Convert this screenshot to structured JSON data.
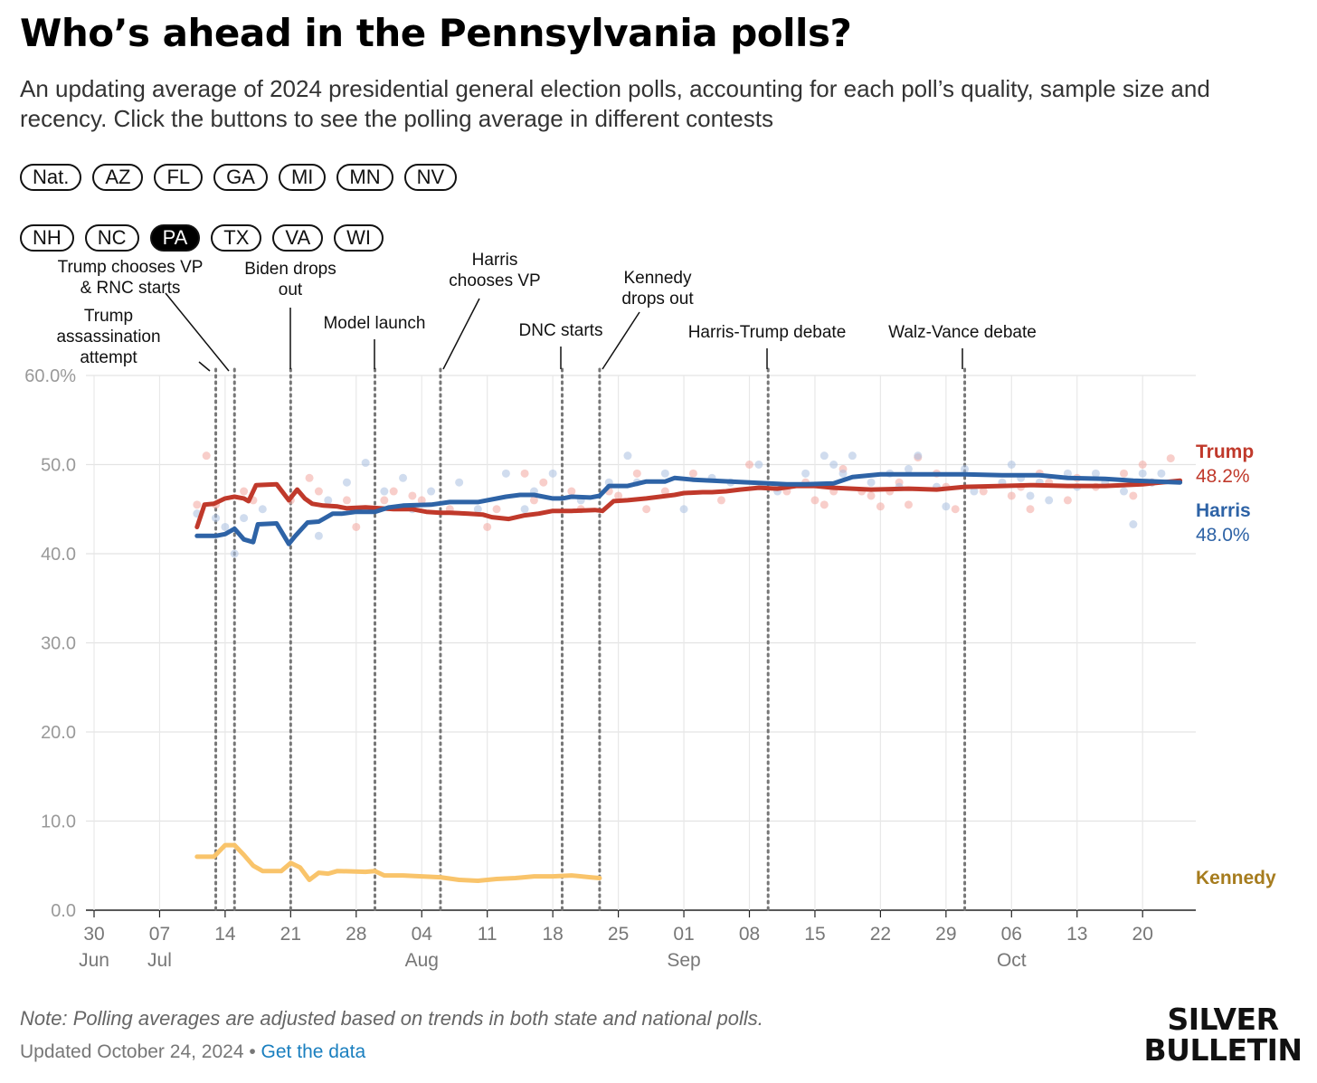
{
  "header": {
    "title": "Who’s ahead in the Pennsylvania polls?",
    "subtitle": "An updating average of 2024 presidential general election polls, accounting for each poll’s quality, sample size and recency. Click the buttons to see the polling average in different contests"
  },
  "buttons": {
    "row1": [
      "Nat.",
      "AZ",
      "FL",
      "GA",
      "MI",
      "MN",
      "NV"
    ],
    "row2": [
      "NH",
      "NC",
      "PA",
      "TX",
      "VA",
      "WI"
    ],
    "active": "PA"
  },
  "footer": {
    "note": "Note: Polling averages are adjusted based on trends in both state and national polls.",
    "updated": "Updated October 24, 2024 •",
    "link": "Get the data",
    "logo_line1": "SILVER",
    "logo_line2": "BULLETIN"
  },
  "colors": {
    "trump": "#c0392b",
    "harris": "#2e63a6",
    "kennedy": "#f9c46b",
    "kennedy_label": "#a67c1e"
  },
  "chart_data": {
    "type": "line",
    "title": "Who’s ahead in the Pennsylvania polls?",
    "x_start": "2024-06-30",
    "x_end": "2024-10-28",
    "ylim": [
      0,
      60
    ],
    "y_ticks": [
      0,
      10,
      20,
      30,
      40,
      50,
      60
    ],
    "y_tick_labels": [
      "0.0",
      "10.0",
      "20.0",
      "30.0",
      "40.0",
      "50.0",
      "60.0%"
    ],
    "x_ticks": [
      {
        "day": 0,
        "label": "30",
        "month": "Jun"
      },
      {
        "day": 7,
        "label": "07",
        "month": "Jul"
      },
      {
        "day": 14,
        "label": "14",
        "month": ""
      },
      {
        "day": 21,
        "label": "21",
        "month": ""
      },
      {
        "day": 28,
        "label": "28",
        "month": ""
      },
      {
        "day": 35,
        "label": "04",
        "month": "Aug"
      },
      {
        "day": 42,
        "label": "11",
        "month": ""
      },
      {
        "day": 49,
        "label": "18",
        "month": ""
      },
      {
        "day": 56,
        "label": "25",
        "month": ""
      },
      {
        "day": 63,
        "label": "01",
        "month": "Sep"
      },
      {
        "day": 70,
        "label": "08",
        "month": ""
      },
      {
        "day": 77,
        "label": "15",
        "month": ""
      },
      {
        "day": 84,
        "label": "22",
        "month": ""
      },
      {
        "day": 91,
        "label": "29",
        "month": ""
      },
      {
        "day": 98,
        "label": "06",
        "month": "Oct"
      },
      {
        "day": 105,
        "label": "13",
        "month": ""
      },
      {
        "day": 112,
        "label": "20",
        "month": ""
      }
    ],
    "events": [
      {
        "day": 13,
        "label": "Trump assassination attempt"
      },
      {
        "day": 15,
        "label": "Trump chooses VP & RNC starts"
      },
      {
        "day": 21,
        "label": "Biden drops out"
      },
      {
        "day": 30,
        "label": "Model launch"
      },
      {
        "day": 37,
        "label": "Harris chooses VP"
      },
      {
        "day": 50,
        "label": "DNC starts"
      },
      {
        "day": 54,
        "label": "Kennedy drops out"
      },
      {
        "day": 72,
        "label": "Harris-Trump debate"
      },
      {
        "day": 93,
        "label": "Walz-Vance debate"
      }
    ],
    "series": [
      {
        "name": "Trump",
        "final_label": "48.2%",
        "points": [
          [
            11,
            43
          ],
          [
            11.8,
            45.5
          ],
          [
            12.8,
            45.6
          ],
          [
            14,
            46.2
          ],
          [
            15,
            46.4
          ],
          [
            16,
            46.2
          ],
          [
            16.5,
            45.9
          ],
          [
            17.3,
            47.7
          ],
          [
            19.5,
            47.8
          ],
          [
            20.8,
            46
          ],
          [
            21.7,
            47.2
          ],
          [
            22.5,
            46.2
          ],
          [
            23.3,
            45.6
          ],
          [
            24.5,
            45.4
          ],
          [
            26,
            45.3
          ],
          [
            27,
            45.1
          ],
          [
            29,
            45.2
          ],
          [
            32,
            45
          ],
          [
            34,
            45
          ],
          [
            35.5,
            44.7
          ],
          [
            37,
            44.6
          ],
          [
            38,
            44.6
          ],
          [
            40,
            44.5
          ],
          [
            41.5,
            44.4
          ],
          [
            42.5,
            44.1
          ],
          [
            44.3,
            43.9
          ],
          [
            46,
            44.3
          ],
          [
            47.5,
            44.5
          ],
          [
            49,
            44.8
          ],
          [
            51,
            44.8
          ],
          [
            53.5,
            44.9
          ],
          [
            54.3,
            44.8
          ],
          [
            55.5,
            45.9
          ],
          [
            57,
            46
          ],
          [
            59,
            46.2
          ],
          [
            62,
            46.6
          ],
          [
            63,
            46.8
          ],
          [
            65,
            46.9
          ],
          [
            66,
            46.9
          ],
          [
            67.5,
            47
          ],
          [
            69,
            47.2
          ],
          [
            71,
            47.4
          ],
          [
            73,
            47.3
          ],
          [
            75,
            47.6
          ],
          [
            77,
            47.6
          ],
          [
            79,
            47.4
          ],
          [
            83,
            47.2
          ],
          [
            87,
            47.3
          ],
          [
            90,
            47.2
          ],
          [
            93,
            47.5
          ],
          [
            97,
            47.6
          ],
          [
            100,
            47.7
          ],
          [
            104,
            47.6
          ],
          [
            108,
            47.6
          ],
          [
            112,
            47.8
          ],
          [
            116,
            48.2
          ]
        ]
      },
      {
        "name": "Harris",
        "final_label": "48.0%",
        "points": [
          [
            11,
            42
          ],
          [
            13,
            42
          ],
          [
            14,
            42.2
          ],
          [
            15,
            42.8
          ],
          [
            16,
            41.6
          ],
          [
            17,
            41.3
          ],
          [
            17.5,
            43.3
          ],
          [
            19.5,
            43.4
          ],
          [
            20.8,
            41.1
          ],
          [
            21.5,
            42
          ],
          [
            22.8,
            43.5
          ],
          [
            24,
            43.6
          ],
          [
            25.5,
            44.5
          ],
          [
            26.5,
            44.5
          ],
          [
            28,
            44.7
          ],
          [
            30,
            44.7
          ],
          [
            31.5,
            45.2
          ],
          [
            33,
            45.4
          ],
          [
            36,
            45.5
          ],
          [
            38,
            45.8
          ],
          [
            41,
            45.8
          ],
          [
            44,
            46.4
          ],
          [
            45.5,
            46.6
          ],
          [
            47,
            46.6
          ],
          [
            49,
            46.2
          ],
          [
            50,
            46.2
          ],
          [
            51,
            46.4
          ],
          [
            53,
            46.3
          ],
          [
            54,
            46.5
          ],
          [
            55,
            47.6
          ],
          [
            57,
            47.6
          ],
          [
            59,
            48.1
          ],
          [
            61,
            48.1
          ],
          [
            62,
            48.5
          ],
          [
            64,
            48.3
          ],
          [
            66,
            48.2
          ],
          [
            68,
            48.1
          ],
          [
            70,
            48
          ],
          [
            74,
            47.8
          ],
          [
            76,
            47.8
          ],
          [
            79,
            47.9
          ],
          [
            81,
            48.6
          ],
          [
            84,
            48.9
          ],
          [
            88,
            48.9
          ],
          [
            93,
            48.9
          ],
          [
            97,
            48.8
          ],
          [
            101,
            48.8
          ],
          [
            104,
            48.5
          ],
          [
            108,
            48.4
          ],
          [
            111,
            48.2
          ],
          [
            116,
            48
          ]
        ]
      },
      {
        "name": "Kennedy",
        "points": [
          [
            11,
            6
          ],
          [
            12.8,
            6
          ],
          [
            14,
            7.3
          ],
          [
            15,
            7.3
          ],
          [
            16,
            6.2
          ],
          [
            17,
            5
          ],
          [
            18,
            4.4
          ],
          [
            20,
            4.4
          ],
          [
            21,
            5.3
          ],
          [
            22,
            4.8
          ],
          [
            23,
            3.4
          ],
          [
            24,
            4.2
          ],
          [
            25,
            4.1
          ],
          [
            26,
            4.4
          ],
          [
            29,
            4.3
          ],
          [
            30,
            4.4
          ],
          [
            31,
            3.9
          ],
          [
            33,
            3.9
          ],
          [
            35,
            3.8
          ],
          [
            37,
            3.7
          ],
          [
            39,
            3.4
          ],
          [
            41,
            3.3
          ],
          [
            43,
            3.5
          ],
          [
            45,
            3.6
          ],
          [
            47,
            3.8
          ],
          [
            49,
            3.8
          ],
          [
            51,
            3.9
          ],
          [
            53,
            3.7
          ],
          [
            54,
            3.6
          ]
        ]
      }
    ],
    "poll_dots": {
      "trump": [
        [
          11,
          45.5
        ],
        [
          12,
          51
        ],
        [
          13,
          45.5
        ],
        [
          16,
          47
        ],
        [
          17,
          46
        ],
        [
          21,
          46
        ],
        [
          23,
          48.5
        ],
        [
          24,
          47
        ],
        [
          27,
          46
        ],
        [
          28,
          43
        ],
        [
          31,
          46
        ],
        [
          32,
          47
        ],
        [
          34,
          46.5
        ],
        [
          35,
          46
        ],
        [
          38,
          45
        ],
        [
          42,
          43
        ],
        [
          43,
          45
        ],
        [
          46,
          49
        ],
        [
          47,
          46
        ],
        [
          48,
          48
        ],
        [
          51,
          47
        ],
        [
          52,
          45
        ],
        [
          55,
          47
        ],
        [
          56,
          46.5
        ],
        [
          58,
          49
        ],
        [
          59,
          45
        ],
        [
          61,
          47
        ],
        [
          64,
          49
        ],
        [
          67,
          46
        ],
        [
          70,
          50
        ],
        [
          74,
          47
        ],
        [
          76,
          48
        ],
        [
          77,
          46
        ],
        [
          78,
          45.5
        ],
        [
          79,
          47
        ],
        [
          80,
          49.5
        ],
        [
          82,
          47
        ],
        [
          83,
          46.5
        ],
        [
          84,
          45.3
        ],
        [
          85,
          47
        ],
        [
          86,
          48
        ],
        [
          87,
          45.5
        ],
        [
          88,
          50.8
        ],
        [
          90,
          49
        ],
        [
          91,
          47.5
        ],
        [
          92,
          45
        ],
        [
          95,
          47
        ],
        [
          98,
          46.5
        ],
        [
          99,
          47.5
        ],
        [
          100,
          45
        ],
        [
          101,
          49
        ],
        [
          102,
          48
        ],
        [
          104,
          46
        ],
        [
          105,
          48.5
        ],
        [
          107,
          47.5
        ],
        [
          110,
          49
        ],
        [
          111,
          46.5
        ],
        [
          112,
          50
        ],
        [
          113,
          48
        ],
        [
          115,
          50.7
        ]
      ],
      "harris": [
        [
          11,
          44.5
        ],
        [
          13,
          44
        ],
        [
          14,
          43
        ],
        [
          15,
          40
        ],
        [
          16,
          44
        ],
        [
          18,
          45
        ],
        [
          24,
          42
        ],
        [
          25,
          46
        ],
        [
          27,
          48
        ],
        [
          29,
          50.2
        ],
        [
          31,
          47
        ],
        [
          33,
          48.5
        ],
        [
          34,
          45
        ],
        [
          36,
          47
        ],
        [
          39,
          48
        ],
        [
          41,
          45
        ],
        [
          44,
          49
        ],
        [
          46,
          45
        ],
        [
          47,
          47
        ],
        [
          49,
          49
        ],
        [
          52,
          46
        ],
        [
          55,
          48
        ],
        [
          57,
          51
        ],
        [
          58,
          48
        ],
        [
          61,
          49
        ],
        [
          63,
          45
        ],
        [
          66,
          48.5
        ],
        [
          68,
          48
        ],
        [
          71,
          50
        ],
        [
          73,
          47
        ],
        [
          76,
          49
        ],
        [
          78,
          51
        ],
        [
          79,
          50
        ],
        [
          80,
          49
        ],
        [
          81,
          51
        ],
        [
          83,
          48
        ],
        [
          85,
          49
        ],
        [
          86,
          47.5
        ],
        [
          87,
          49.5
        ],
        [
          88,
          51
        ],
        [
          90,
          47.5
        ],
        [
          91,
          45.3
        ],
        [
          93,
          49.5
        ],
        [
          94,
          47
        ],
        [
          97,
          48
        ],
        [
          98,
          50
        ],
        [
          99,
          48.5
        ],
        [
          100,
          46.5
        ],
        [
          101,
          48
        ],
        [
          102,
          46
        ],
        [
          104,
          49
        ],
        [
          105,
          47.5
        ],
        [
          107,
          49
        ],
        [
          108,
          48
        ],
        [
          110,
          47
        ],
        [
          111,
          43.3
        ],
        [
          112,
          49
        ],
        [
          113,
          48
        ],
        [
          114,
          49
        ]
      ]
    }
  }
}
